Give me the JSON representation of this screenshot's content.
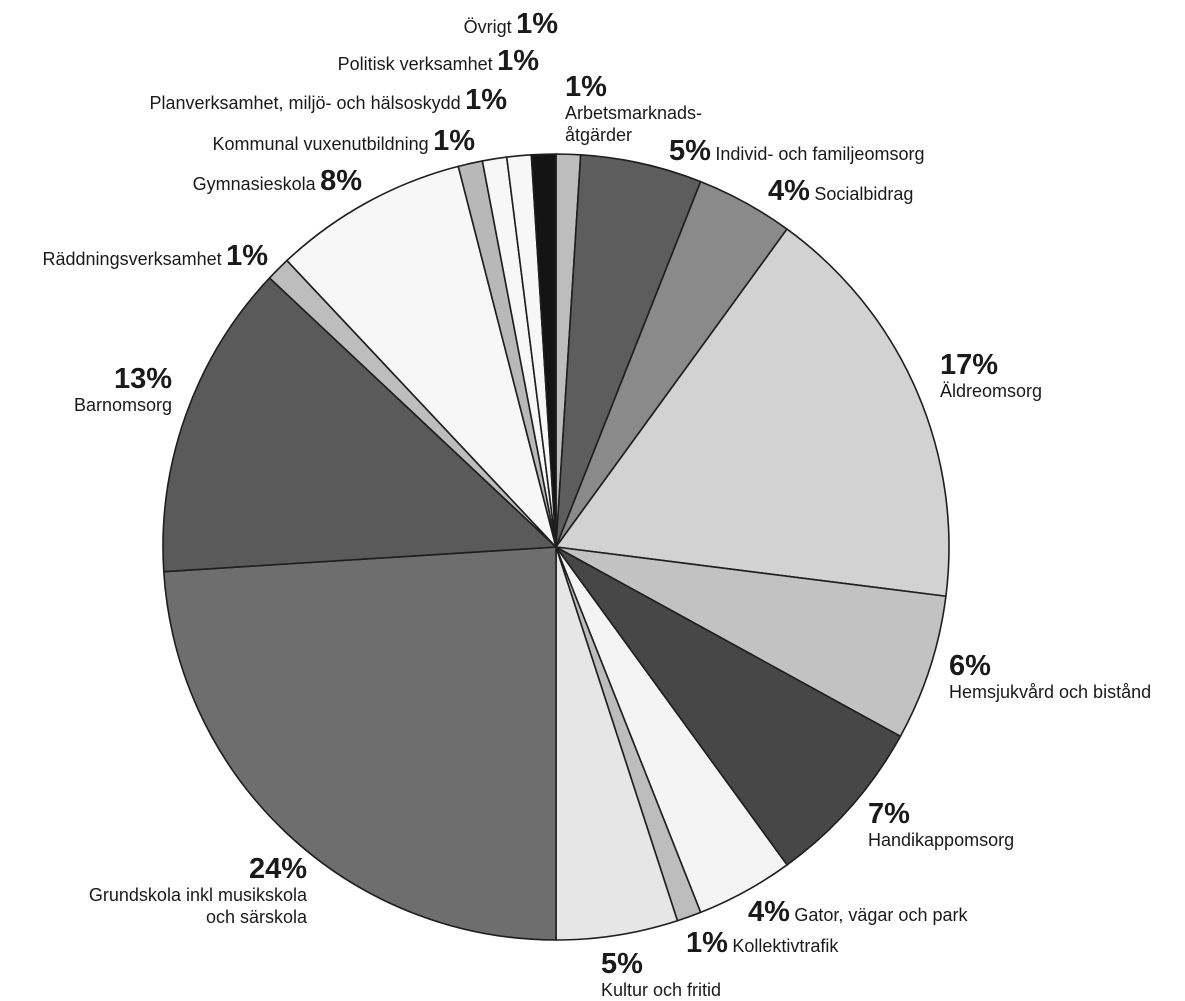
{
  "chart_data": {
    "type": "pie",
    "title": "",
    "slices": [
      {
        "name": "Arbetsmarknads-åtgärder",
        "pct_label": "1%",
        "value": 1,
        "color": "#bdbdbd"
      },
      {
        "name": "Individ- och familjeomsorg",
        "pct_label": "5%",
        "value": 5,
        "color": "#5d5d5d"
      },
      {
        "name": "Socialbidrag",
        "pct_label": "4%",
        "value": 4,
        "color": "#8a8a8a"
      },
      {
        "name": "Äldreomsorg",
        "pct_label": "17%",
        "value": 17,
        "color": "#d2d2d2"
      },
      {
        "name": "Hemsjukvård och bistånd",
        "pct_label": "6%",
        "value": 6,
        "color": "#c2c2c2"
      },
      {
        "name": "Handikappomsorg",
        "pct_label": "7%",
        "value": 7,
        "color": "#474747"
      },
      {
        "name": "Gator, vägar och park",
        "pct_label": "4%",
        "value": 4,
        "color": "#f4f4f4"
      },
      {
        "name": "Kollektivtrafik",
        "pct_label": "1%",
        "value": 1,
        "color": "#bdbdbd"
      },
      {
        "name": "Kultur och fritid",
        "pct_label": "5%",
        "value": 5,
        "color": "#e6e6e6"
      },
      {
        "name": "Grundskola inkl musikskola och särskola",
        "pct_label": "24%",
        "value": 24,
        "color": "#6e6e6e"
      },
      {
        "name": "Barnomsorg",
        "pct_label": "13%",
        "value": 13,
        "color": "#5a5a5a"
      },
      {
        "name": "Räddningsverksamhet",
        "pct_label": "1%",
        "value": 1,
        "color": "#bdbdbd"
      },
      {
        "name": "Gymnasieskola",
        "pct_label": "8%",
        "value": 8,
        "color": "#f7f7f7"
      },
      {
        "name": "Kommunal vuxenutbildning",
        "pct_label": "1%",
        "value": 1,
        "color": "#b8b8b8"
      },
      {
        "name": "Planverksamhet, miljö- och hälsoskydd",
        "pct_label": "1%",
        "value": 1,
        "color": "#f7f7f7"
      },
      {
        "name": "Politisk verksamhet",
        "pct_label": "1%",
        "value": 1,
        "color": "#f7f7f7"
      },
      {
        "name": "Övrigt",
        "pct_label": "1%",
        "value": 1,
        "color": "#141414"
      }
    ]
  },
  "labels": {
    "arbetsmarknad": {
      "pct": "1%",
      "line1": "Arbetsmarknads-",
      "line2": "åtgärder"
    },
    "individ": {
      "pct": "5%",
      "name": "Individ- och familjeomsorg"
    },
    "socialbidrag": {
      "pct": "4%",
      "name": "Socialbidrag"
    },
    "aldreomsorg": {
      "pct": "17%",
      "name": "Äldreomsorg"
    },
    "hemsjukvard": {
      "pct": "6%",
      "name": "Hemsjukvård och bistånd"
    },
    "handikapp": {
      "pct": "7%",
      "name": "Handikappomsorg"
    },
    "gator": {
      "pct": "4%",
      "name": "Gator, vägar och park"
    },
    "kollektiv": {
      "pct": "1%",
      "name": "Kollektivtrafik"
    },
    "kultur": {
      "pct": "5%",
      "name": "Kultur och fritid"
    },
    "grundskola": {
      "pct": "24%",
      "line1": "Grundskola inkl musikskola",
      "line2": "och särskola"
    },
    "barnomsorg": {
      "pct": "13%",
      "name": "Barnomsorg"
    },
    "raddning": {
      "pct": "1%",
      "name": "Räddningsverksamhet"
    },
    "gymnasie": {
      "pct": "8%",
      "name": "Gymnasieskola"
    },
    "vuxen": {
      "pct": "1%",
      "name": "Kommunal vuxenutbildning"
    },
    "plan": {
      "pct": "1%",
      "name": "Planverksamhet, miljö- och hälsoskydd"
    },
    "politisk": {
      "pct": "1%",
      "name": "Politisk verksamhet"
    },
    "ovrigt": {
      "pct": "1%",
      "name": "Övrigt"
    }
  }
}
